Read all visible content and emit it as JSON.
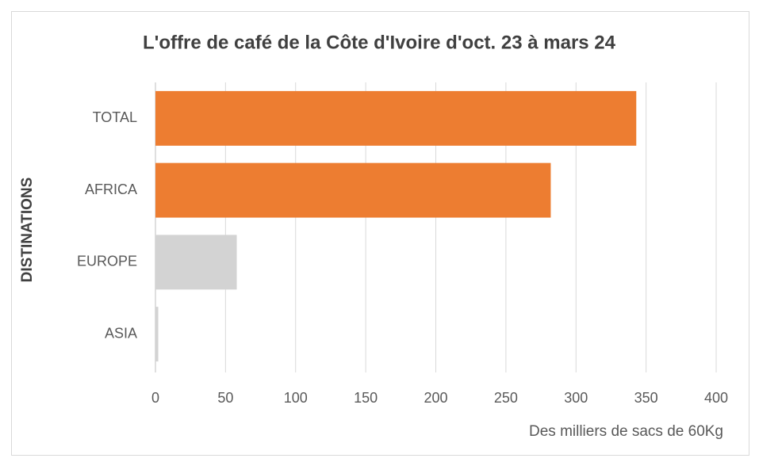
{
  "chart_data": {
    "type": "bar",
    "orientation": "horizontal",
    "title": "L'offre de café de la Côte d'Ivoire d'oct. 23 à mars 24",
    "ylabel": "DISTINATIONS",
    "xlabel": "Des milliers de sacs de 60Kg",
    "categories": [
      "TOTAL",
      "AFRICA",
      "EUROPE",
      "ASIA"
    ],
    "values": [
      343,
      282,
      58,
      2
    ],
    "colors": [
      "#ed7d31",
      "#ed7d31",
      "#d3d3d3",
      "#d3d3d3"
    ],
    "xlim": [
      0,
      400
    ],
    "xticks": [
      0,
      50,
      100,
      150,
      200,
      250,
      300,
      350,
      400
    ],
    "grid": true
  }
}
